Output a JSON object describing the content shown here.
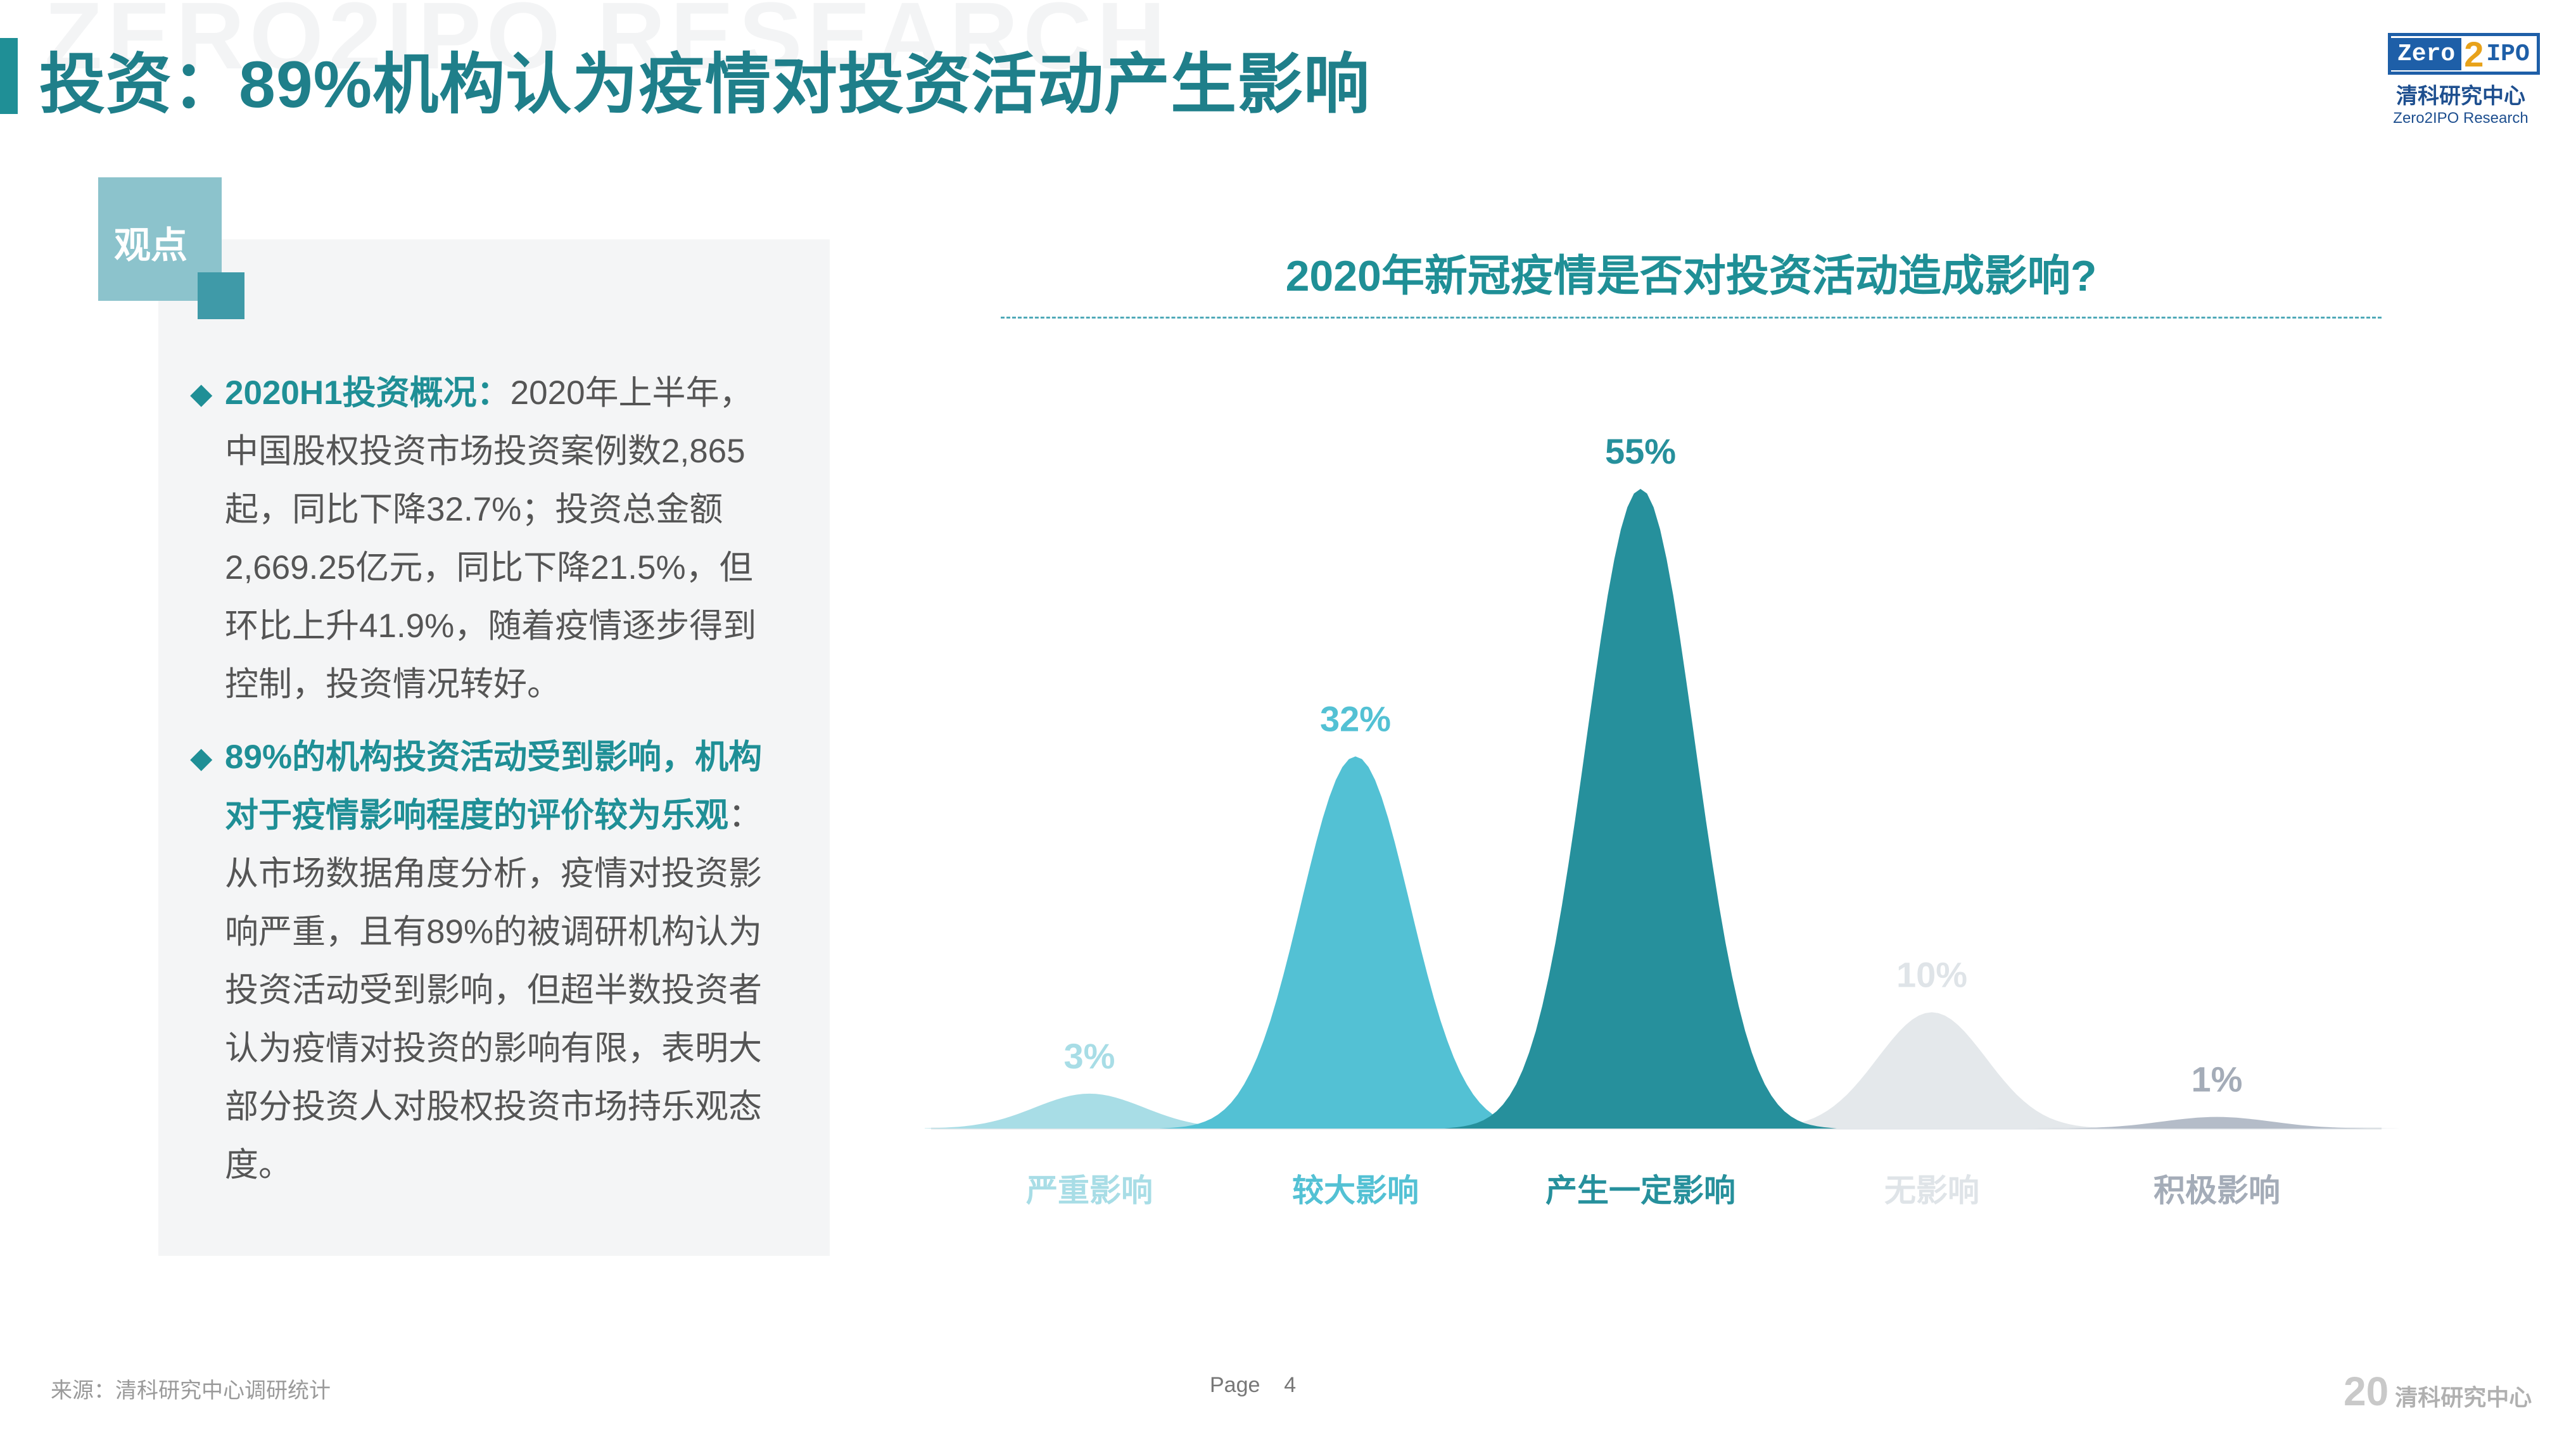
{
  "watermark": "ZERO2IPO RESEARCH",
  "title": "投资：89%机构认为疫情对投资活动产生影响",
  "logo": {
    "top_left": "Zero",
    "top_mid": "2",
    "top_right": "IPO",
    "cn": "清科研究中心",
    "en": "Zero2IPO Research"
  },
  "sidebar": {
    "tag": "观点",
    "bullet1": {
      "heading": "2020H1投资概况：",
      "text": "2020年上半年，中国股权投资市场投资案例数2,865起，同比下降32.7%；投资总金额2,669.25亿元，同比下降21.5%，但环比上升41.9%，随着疫情逐步得到控制，投资情况转好。"
    },
    "bullet2": {
      "heading": "89%的机构投资活动受到影响，机构对于疫情影响程度的评价较为乐观",
      "text": "：从市场数据角度分析，疫情对投资影响严重，且有89%的被调研机构认为投资活动受到影响，但超半数投资者认为疫情对投资的影响有限，表明大部分投资人对股权投资市场持乐观态度。"
    }
  },
  "chart_data": {
    "type": "area",
    "title": "2020年新冠疫情是否对投资活动造成影响?",
    "categories": [
      "严重影响",
      "较大影响",
      "产生一定影响",
      "无影响",
      "积极影响"
    ],
    "values": [
      3,
      32,
      55,
      10,
      1
    ],
    "value_labels": [
      "3%",
      "32%",
      "55%",
      "10%",
      "1%"
    ],
    "unit": "%",
    "colors": [
      "#a8dde6",
      "#53c1d4",
      "#26909c",
      "#e4e8eb",
      "#b4bcc8"
    ],
    "label_colors": [
      "#a8dde6",
      "#53c1d4",
      "#26909c",
      "#dfe4e8",
      "#a4acb8"
    ],
    "grid": false,
    "legend": "none"
  },
  "footer": {
    "source": "来源：清科研究中心调研统计",
    "page_label": "Page",
    "page_number": "4",
    "logo_num": "20",
    "logo_text": "清科研究中心"
  }
}
